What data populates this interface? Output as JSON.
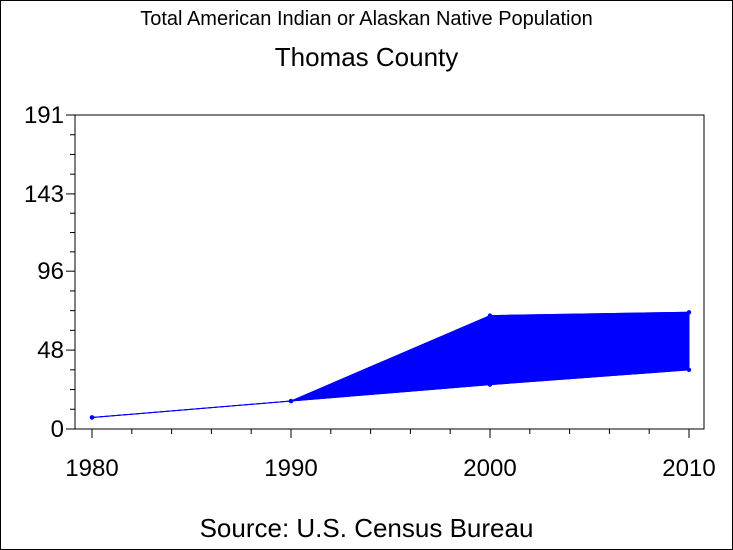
{
  "chart_data": {
    "type": "area",
    "title": "Total American Indian or Alaskan Native Population",
    "subtitle": "Thomas County",
    "source": "Source: U.S. Census Bureau",
    "x": [
      1980,
      1990,
      2000,
      2010
    ],
    "x_tick_labels": [
      "1980",
      "1990",
      "2000",
      "2010"
    ],
    "y_tick_values": [
      0,
      48,
      96,
      143,
      191
    ],
    "y_tick_labels": [
      "0",
      "48",
      "96",
      "143",
      "191"
    ],
    "ylim": [
      0,
      191
    ],
    "xlim": [
      1980,
      2010
    ],
    "series": [
      {
        "values": [
          7,
          17,
          69,
          71
        ]
      },
      {
        "values": [
          7,
          17,
          27,
          36
        ]
      }
    ],
    "fill_color": "#0000ff",
    "line_color": "#0000ff",
    "grid": false
  }
}
